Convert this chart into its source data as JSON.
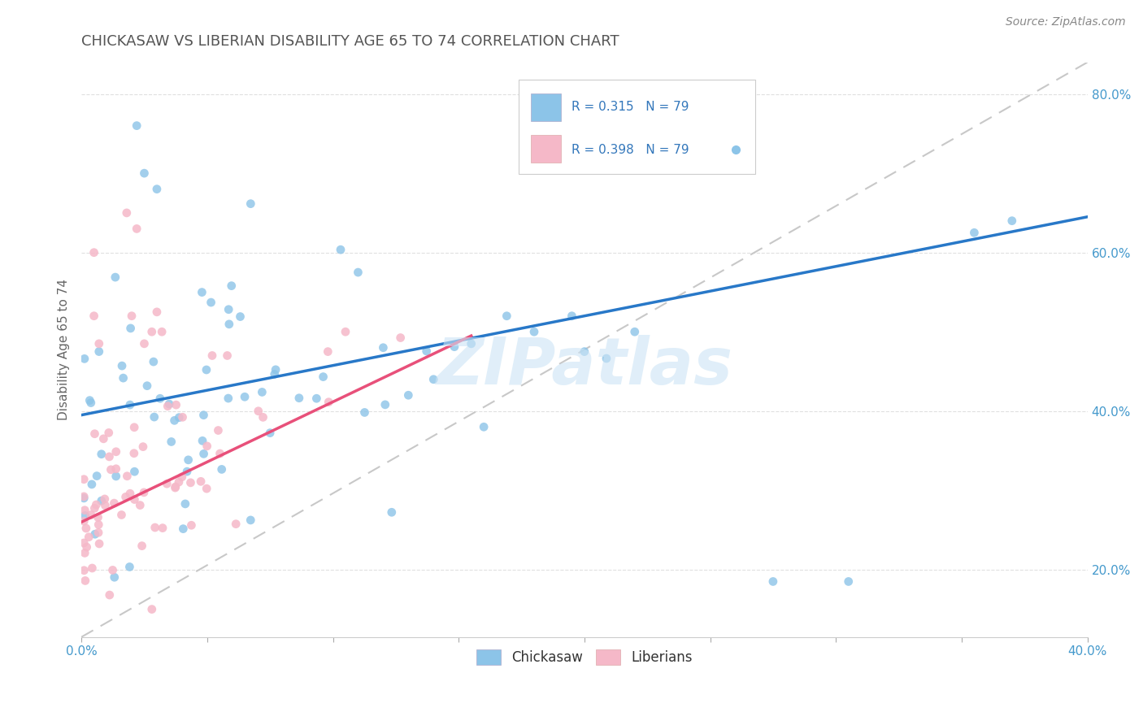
{
  "title": "CHICKASAW VS LIBERIAN DISABILITY AGE 65 TO 74 CORRELATION CHART",
  "source": "Source: ZipAtlas.com",
  "ylabel": "Disability Age 65 to 74",
  "xlim": [
    0.0,
    0.4
  ],
  "ylim": [
    0.115,
    0.84
  ],
  "x_ticks": [
    0.0,
    0.05,
    0.1,
    0.15,
    0.2,
    0.25,
    0.3,
    0.35,
    0.4
  ],
  "x_tick_labels_show": [
    "0.0%",
    "",
    "",
    "",
    "",
    "",
    "",
    "",
    "40.0%"
  ],
  "y_ticks": [
    0.2,
    0.4,
    0.6,
    0.8
  ],
  "y_tick_labels": [
    "20.0%",
    "40.0%",
    "60.0%",
    "80.0%"
  ],
  "legend_labels": [
    "Chickasaw",
    "Liberians"
  ],
  "chickasaw_R": "0.315",
  "chickasaw_N": "79",
  "liberian_R": "0.398",
  "liberian_N": "79",
  "blue_color": "#8cc4e8",
  "pink_color": "#f5b8c8",
  "blue_line_color": "#2878c8",
  "pink_line_color": "#e8507a",
  "ref_line_color": "#c8c8c8",
  "watermark": "ZIPatlas",
  "background_color": "#ffffff",
  "title_color": "#555555",
  "title_fontsize": 13,
  "blue_trend_x0": 0.0,
  "blue_trend_y0": 0.395,
  "blue_trend_x1": 0.4,
  "blue_trend_y1": 0.645,
  "pink_trend_x0": 0.0,
  "pink_trend_y0": 0.26,
  "pink_trend_x1": 0.155,
  "pink_trend_y1": 0.495,
  "ref_line_x0": 0.0,
  "ref_line_y0": 0.115,
  "ref_line_x1": 0.4,
  "ref_line_y1": 0.84
}
